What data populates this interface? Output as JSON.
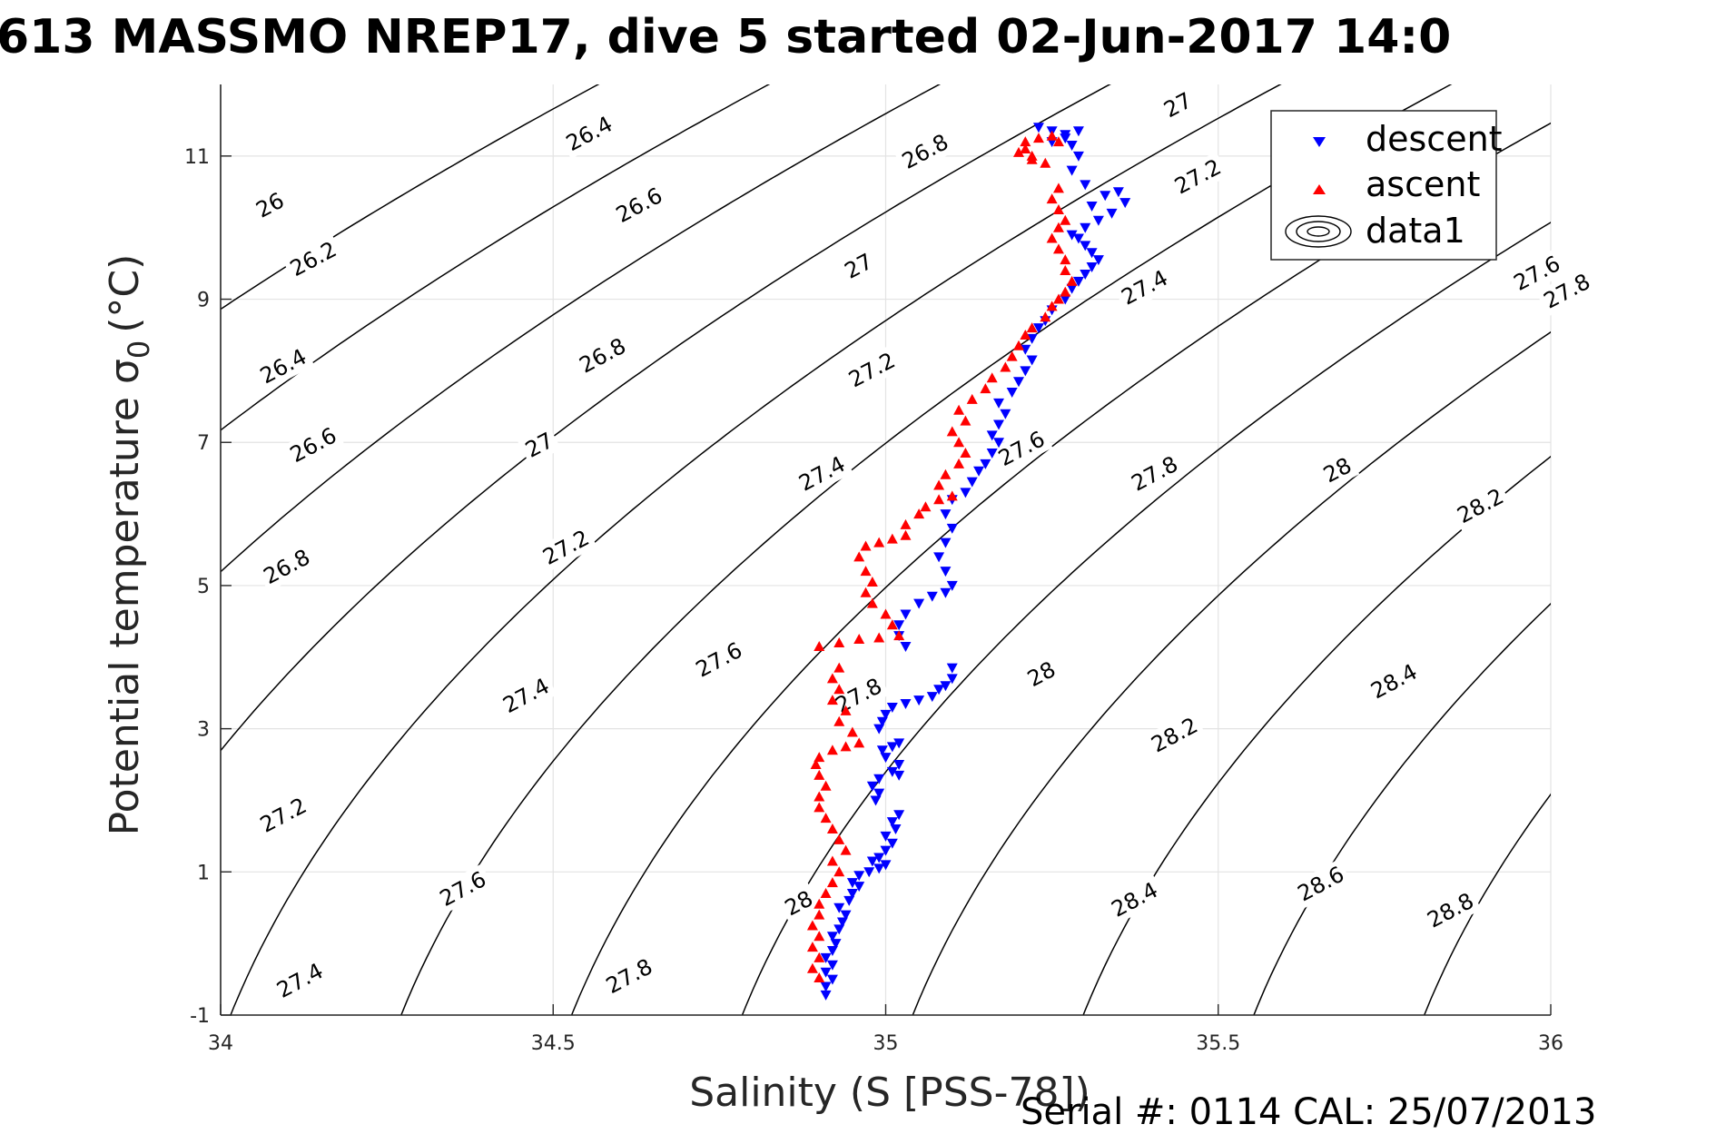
{
  "chart_data": {
    "type": "scatter",
    "title": "613 MASSMO NREP17, dive 5 started 02-Jun-2017 14:0",
    "xlabel": "Salinity (S [PSS-78])",
    "ylabel": "Potential temperature",
    "ylabel_symbol": "σ",
    "ylabel_subscript": "0",
    "ylabel_unit": "(°C)",
    "xlim": [
      34,
      36
    ],
    "ylim": [
      -1,
      12
    ],
    "xticks": [
      34,
      34.5,
      35,
      35.5,
      36
    ],
    "xtick_labels": [
      "34",
      "34.5",
      "35",
      "35.5",
      "36"
    ],
    "yticks": [
      -1,
      1,
      3,
      5,
      7,
      9,
      11
    ],
    "ytick_labels": [
      "-1",
      "1",
      "3",
      "5",
      "7",
      "9",
      "11"
    ],
    "grid": true,
    "legend_position": "top-right",
    "legend": [
      "descent",
      "ascent",
      "data1"
    ],
    "footer": "Serial #: 0114  CAL: 25/07/2013",
    "contours": {
      "name": "data1",
      "color": "#000000",
      "levels": [
        26.0,
        26.2,
        26.4,
        26.6,
        26.8,
        27.0,
        27.2,
        27.4,
        27.6,
        27.8,
        28.0,
        28.2,
        28.4,
        28.6,
        28.8
      ],
      "labels": [
        {
          "text": "26",
          "x": 34.075,
          "y": 10.3
        },
        {
          "text": "26.2",
          "x": 34.14,
          "y": 9.55
        },
        {
          "text": "26.4",
          "x": 34.095,
          "y": 8.05
        },
        {
          "text": "26.6",
          "x": 34.14,
          "y": 6.95
        },
        {
          "text": "26.8",
          "x": 34.1,
          "y": 5.25
        },
        {
          "text": "27.2",
          "x": 34.095,
          "y": 1.78
        },
        {
          "text": "27.4",
          "x": 34.12,
          "y": -0.53
        },
        {
          "text": "26.4",
          "x": 34.555,
          "y": 11.3
        },
        {
          "text": "26.6",
          "x": 34.63,
          "y": 10.3
        },
        {
          "text": "26.8",
          "x": 34.575,
          "y": 8.2
        },
        {
          "text": "27",
          "x": 34.48,
          "y": 6.95
        },
        {
          "text": "27.2",
          "x": 34.52,
          "y": 5.52
        },
        {
          "text": "27.4",
          "x": 34.46,
          "y": 3.45
        },
        {
          "text": "27.6",
          "x": 34.365,
          "y": 0.75
        },
        {
          "text": "27.8",
          "x": 34.615,
          "y": -0.47
        },
        {
          "text": "26.8",
          "x": 35.06,
          "y": 11.05
        },
        {
          "text": "27",
          "x": 34.96,
          "y": 9.45
        },
        {
          "text": "27.2",
          "x": 34.98,
          "y": 8.0
        },
        {
          "text": "27.4",
          "x": 34.905,
          "y": 6.55
        },
        {
          "text": "27.6",
          "x": 34.75,
          "y": 3.95
        },
        {
          "text": "27.8",
          "x": 34.96,
          "y": 3.45
        },
        {
          "text": "28",
          "x": 34.87,
          "y": 0.55
        },
        {
          "text": "27",
          "x": 35.44,
          "y": 11.7
        },
        {
          "text": "27.2",
          "x": 35.47,
          "y": 10.7
        },
        {
          "text": "27.4",
          "x": 35.39,
          "y": 9.15
        },
        {
          "text": "27.6",
          "x": 35.205,
          "y": 6.9
        },
        {
          "text": "27.8",
          "x": 35.405,
          "y": 6.55
        },
        {
          "text": "28",
          "x": 35.235,
          "y": 3.75
        },
        {
          "text": "28.2",
          "x": 35.435,
          "y": 2.9
        },
        {
          "text": "28.4",
          "x": 35.375,
          "y": 0.6
        },
        {
          "text": "27.6",
          "x": 35.98,
          "y": 9.35
        },
        {
          "text": "27.8",
          "x": 36.025,
          "y": 9.1
        },
        {
          "text": "28",
          "x": 35.68,
          "y": 6.6
        },
        {
          "text": "28.2",
          "x": 35.895,
          "y": 6.1
        },
        {
          "text": "28.4",
          "x": 35.765,
          "y": 3.65
        },
        {
          "text": "28.6",
          "x": 35.655,
          "y": 0.82
        },
        {
          "text": "28.8",
          "x": 35.85,
          "y": 0.45
        }
      ]
    },
    "series": [
      {
        "name": "descent",
        "marker": "triangle-down",
        "color": "#0000ff",
        "points": [
          [
            34.91,
            -0.72
          ],
          [
            34.91,
            -0.6
          ],
          [
            34.92,
            -0.5
          ],
          [
            34.91,
            -0.4
          ],
          [
            34.92,
            -0.3
          ],
          [
            34.91,
            -0.2
          ],
          [
            34.92,
            -0.1
          ],
          [
            34.925,
            0.0
          ],
          [
            34.92,
            0.1
          ],
          [
            34.93,
            0.2
          ],
          [
            34.935,
            0.3
          ],
          [
            34.94,
            0.4
          ],
          [
            34.93,
            0.5
          ],
          [
            34.945,
            0.6
          ],
          [
            34.95,
            0.7
          ],
          [
            34.96,
            0.8
          ],
          [
            34.95,
            0.85
          ],
          [
            34.96,
            0.95
          ],
          [
            34.975,
            1.0
          ],
          [
            34.99,
            1.05
          ],
          [
            35.0,
            1.1
          ],
          [
            34.98,
            1.15
          ],
          [
            34.99,
            1.2
          ],
          [
            35.0,
            1.3
          ],
          [
            35.01,
            1.4
          ],
          [
            35.0,
            1.5
          ],
          [
            35.015,
            1.6
          ],
          [
            35.01,
            1.7
          ],
          [
            35.02,
            1.8
          ],
          [
            34.985,
            2.0
          ],
          [
            34.99,
            2.1
          ],
          [
            34.98,
            2.2
          ],
          [
            34.99,
            2.3
          ],
          [
            35.01,
            2.4
          ],
          [
            35.02,
            2.35
          ],
          [
            35.02,
            2.5
          ],
          [
            35.0,
            2.6
          ],
          [
            34.995,
            2.7
          ],
          [
            35.01,
            2.75
          ],
          [
            35.02,
            2.8
          ],
          [
            34.99,
            3.0
          ],
          [
            34.995,
            3.1
          ],
          [
            35.0,
            3.2
          ],
          [
            35.01,
            3.3
          ],
          [
            35.03,
            3.35
          ],
          [
            35.05,
            3.4
          ],
          [
            35.07,
            3.45
          ],
          [
            35.08,
            3.55
          ],
          [
            35.09,
            3.6
          ],
          [
            35.1,
            3.7
          ],
          [
            35.1,
            3.85
          ],
          [
            35.03,
            4.15
          ],
          [
            35.02,
            4.3
          ],
          [
            35.02,
            4.45
          ],
          [
            35.03,
            4.6
          ],
          [
            35.05,
            4.75
          ],
          [
            35.07,
            4.85
          ],
          [
            35.09,
            4.9
          ],
          [
            35.1,
            5.0
          ],
          [
            35.09,
            5.2
          ],
          [
            35.08,
            5.4
          ],
          [
            35.09,
            5.6
          ],
          [
            35.1,
            5.8
          ],
          [
            35.09,
            6.0
          ],
          [
            35.1,
            6.2
          ],
          [
            35.12,
            6.3
          ],
          [
            35.13,
            6.45
          ],
          [
            35.14,
            6.6
          ],
          [
            35.15,
            6.7
          ],
          [
            35.16,
            6.85
          ],
          [
            35.17,
            7.0
          ],
          [
            35.16,
            7.1
          ],
          [
            35.17,
            7.25
          ],
          [
            35.18,
            7.4
          ],
          [
            35.17,
            7.55
          ],
          [
            35.19,
            7.7
          ],
          [
            35.2,
            7.85
          ],
          [
            35.21,
            8.0
          ],
          [
            35.22,
            8.15
          ],
          [
            35.21,
            8.3
          ],
          [
            35.22,
            8.45
          ],
          [
            35.23,
            8.6
          ],
          [
            35.24,
            8.7
          ],
          [
            35.25,
            8.85
          ],
          [
            35.27,
            9.0
          ],
          [
            35.28,
            9.15
          ],
          [
            35.29,
            9.25
          ],
          [
            35.3,
            9.35
          ],
          [
            35.31,
            9.45
          ],
          [
            35.32,
            9.55
          ],
          [
            35.31,
            9.65
          ],
          [
            35.3,
            9.75
          ],
          [
            35.29,
            9.85
          ],
          [
            35.28,
            9.9
          ],
          [
            35.3,
            10.0
          ],
          [
            35.32,
            10.1
          ],
          [
            35.34,
            10.2
          ],
          [
            35.36,
            10.35
          ],
          [
            35.35,
            10.5
          ],
          [
            35.33,
            10.45
          ],
          [
            35.31,
            10.3
          ],
          [
            35.3,
            10.6
          ],
          [
            35.28,
            10.8
          ],
          [
            35.29,
            11.0
          ],
          [
            35.28,
            11.15
          ],
          [
            35.27,
            11.25
          ],
          [
            35.25,
            11.35
          ],
          [
            35.23,
            11.4
          ],
          [
            35.25,
            11.2
          ],
          [
            35.27,
            11.3
          ],
          [
            35.29,
            11.35
          ]
        ]
      },
      {
        "name": "ascent",
        "marker": "triangle-up",
        "color": "#ff0000",
        "points": [
          [
            34.9,
            -0.48
          ],
          [
            34.89,
            -0.35
          ],
          [
            34.9,
            -0.2
          ],
          [
            34.89,
            -0.05
          ],
          [
            34.9,
            0.1
          ],
          [
            34.89,
            0.25
          ],
          [
            34.9,
            0.4
          ],
          [
            34.9,
            0.55
          ],
          [
            34.91,
            0.7
          ],
          [
            34.92,
            0.85
          ],
          [
            34.93,
            1.0
          ],
          [
            34.92,
            1.15
          ],
          [
            34.94,
            1.3
          ],
          [
            34.93,
            1.45
          ],
          [
            34.92,
            1.6
          ],
          [
            34.91,
            1.75
          ],
          [
            34.9,
            1.9
          ],
          [
            34.9,
            2.05
          ],
          [
            34.91,
            2.2
          ],
          [
            34.9,
            2.35
          ],
          [
            34.895,
            2.5
          ],
          [
            34.9,
            2.6
          ],
          [
            34.92,
            2.7
          ],
          [
            34.94,
            2.75
          ],
          [
            34.96,
            2.8
          ],
          [
            34.95,
            2.95
          ],
          [
            34.93,
            3.1
          ],
          [
            34.94,
            3.25
          ],
          [
            34.92,
            3.4
          ],
          [
            34.93,
            3.55
          ],
          [
            34.92,
            3.7
          ],
          [
            34.93,
            3.85
          ],
          [
            34.9,
            4.15
          ],
          [
            34.93,
            4.2
          ],
          [
            34.96,
            4.25
          ],
          [
            34.99,
            4.27
          ],
          [
            35.02,
            4.3
          ],
          [
            35.01,
            4.45
          ],
          [
            35.0,
            4.6
          ],
          [
            34.98,
            4.75
          ],
          [
            34.97,
            4.9
          ],
          [
            34.98,
            5.05
          ],
          [
            34.97,
            5.2
          ],
          [
            34.96,
            5.4
          ],
          [
            34.97,
            5.55
          ],
          [
            34.99,
            5.6
          ],
          [
            35.01,
            5.65
          ],
          [
            35.03,
            5.7
          ],
          [
            35.03,
            5.85
          ],
          [
            35.05,
            6.0
          ],
          [
            35.06,
            6.1
          ],
          [
            35.08,
            6.2
          ],
          [
            35.1,
            6.25
          ],
          [
            35.08,
            6.4
          ],
          [
            35.09,
            6.55
          ],
          [
            35.11,
            6.7
          ],
          [
            35.12,
            6.85
          ],
          [
            35.11,
            7.0
          ],
          [
            35.1,
            7.15
          ],
          [
            35.12,
            7.3
          ],
          [
            35.11,
            7.45
          ],
          [
            35.13,
            7.6
          ],
          [
            35.15,
            7.75
          ],
          [
            35.16,
            7.9
          ],
          [
            35.18,
            8.05
          ],
          [
            35.19,
            8.2
          ],
          [
            35.2,
            8.35
          ],
          [
            35.21,
            8.5
          ],
          [
            35.22,
            8.6
          ],
          [
            35.24,
            8.75
          ],
          [
            35.25,
            8.9
          ],
          [
            35.26,
            9.0
          ],
          [
            35.27,
            9.1
          ],
          [
            35.28,
            9.25
          ],
          [
            35.27,
            9.4
          ],
          [
            35.27,
            9.55
          ],
          [
            35.26,
            9.7
          ],
          [
            35.25,
            9.85
          ],
          [
            35.26,
            10.0
          ],
          [
            35.27,
            10.1
          ],
          [
            35.26,
            10.25
          ],
          [
            35.25,
            10.4
          ],
          [
            35.26,
            10.55
          ],
          [
            35.24,
            10.9
          ],
          [
            35.22,
            11.0
          ],
          [
            35.2,
            11.05
          ],
          [
            35.21,
            11.2
          ],
          [
            35.23,
            11.25
          ],
          [
            35.25,
            11.28
          ],
          [
            35.26,
            11.2
          ],
          [
            35.22,
            10.95
          ],
          [
            35.21,
            11.1
          ]
        ]
      }
    ]
  }
}
